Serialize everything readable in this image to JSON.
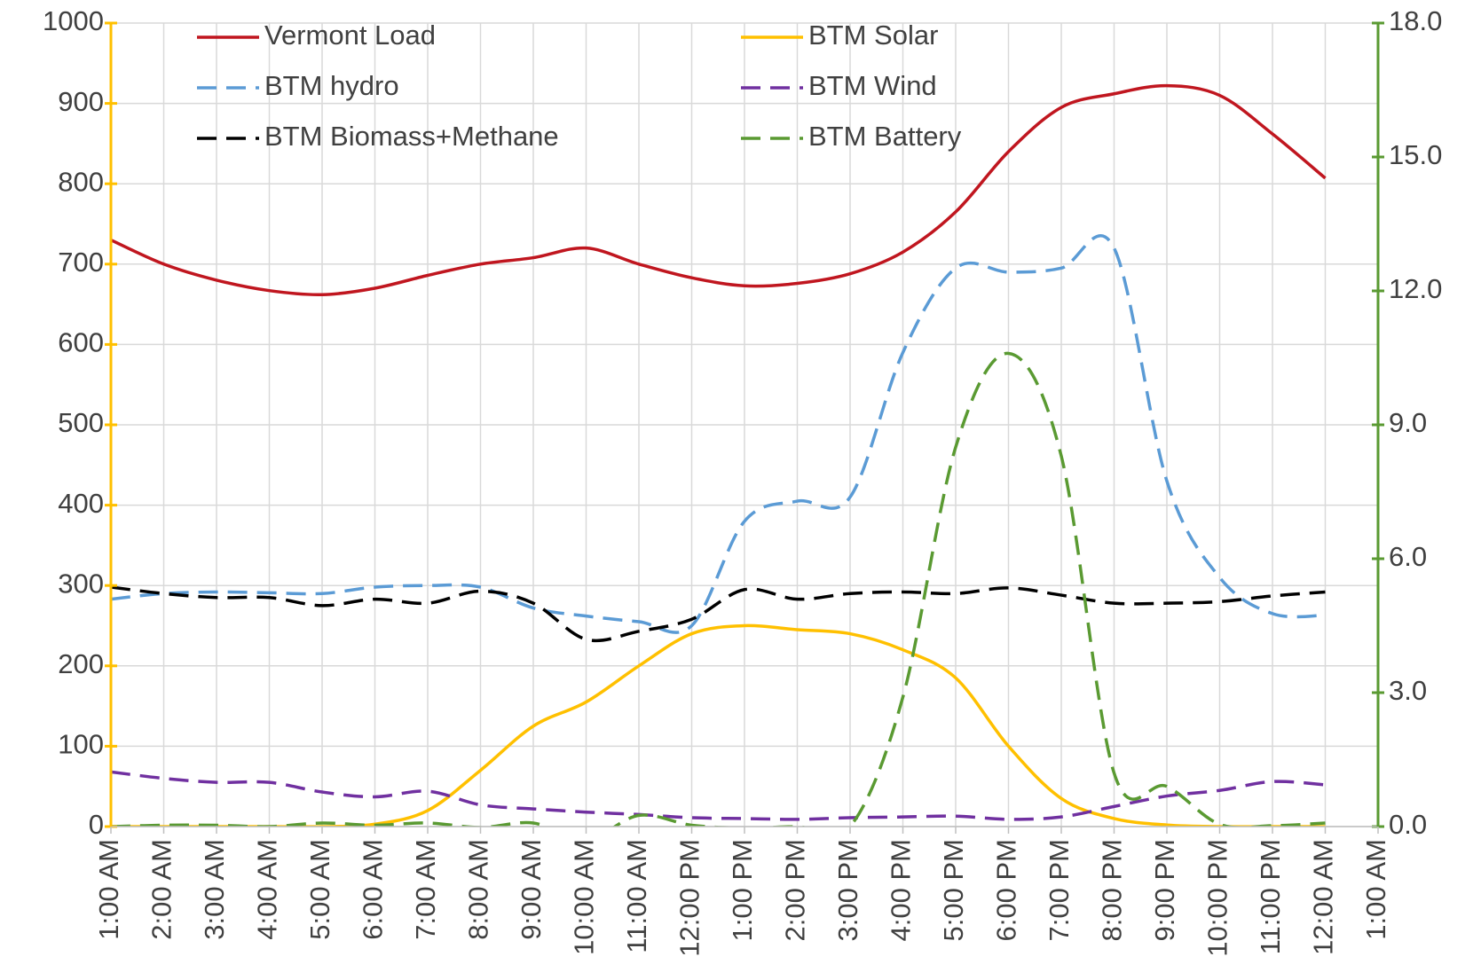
{
  "chart_data": {
    "type": "line",
    "categories": [
      "1:00 AM",
      "2:00 AM",
      "3:00 AM",
      "4:00 AM",
      "5:00 AM",
      "6:00 AM",
      "7:00 AM",
      "8:00 AM",
      "9:00 AM",
      "10:00 AM",
      "11:00 AM",
      "12:00 PM",
      "1:00 PM",
      "2:00 PM",
      "3:00 PM",
      "4:00 PM",
      "5:00 PM",
      "6:00 PM",
      "7:00 PM",
      "8:00 PM",
      "9:00 PM",
      "10:00 PM",
      "11:00 PM",
      "12:00 AM",
      "1:00 AM"
    ],
    "series": [
      {
        "name": "Vermont Load",
        "color": "#c0161f",
        "dashed": false,
        "values": [
          730,
          700,
          680,
          667,
          662,
          670,
          686,
          700,
          708,
          720,
          700,
          683,
          673,
          676,
          688,
          715,
          765,
          840,
          895,
          912,
          922,
          910,
          862,
          807,
          null
        ]
      },
      {
        "name": "BTM Solar",
        "color": "#ffc000",
        "dashed": false,
        "values": [
          0,
          0,
          0,
          0,
          0,
          3,
          20,
          70,
          125,
          155,
          200,
          240,
          250,
          245,
          240,
          220,
          185,
          100,
          35,
          10,
          2,
          0,
          0,
          0,
          null
        ]
      },
      {
        "name": "BTM hydro",
        "color": "#5b9bd5",
        "dashed": true,
        "values": [
          283,
          290,
          292,
          291,
          290,
          298,
          300,
          298,
          272,
          262,
          255,
          250,
          380,
          405,
          410,
          590,
          695,
          690,
          695,
          720,
          430,
          310,
          265,
          263,
          null
        ]
      },
      {
        "name": "BTM Wind",
        "color": "#7030a0",
        "dashed": true,
        "values": [
          68,
          60,
          55,
          55,
          43,
          37,
          44,
          27,
          22,
          18,
          15,
          11,
          10,
          9,
          11,
          12,
          13,
          9,
          12,
          25,
          38,
          45,
          56,
          52,
          null
        ]
      },
      {
        "name": "BTM Biomass+Methane",
        "color": "#000000",
        "dashed": true,
        "values": [
          298,
          290,
          285,
          285,
          275,
          283,
          278,
          293,
          278,
          233,
          243,
          258,
          295,
          283,
          290,
          292,
          290,
          297,
          288,
          278,
          278,
          280,
          287,
          292,
          null
        ]
      },
      {
        "name": "BTM Battery",
        "color": "#5a9a32",
        "dashed": true,
        "axis": "y2",
        "values": [
          0,
          0.03,
          0.03,
          0,
          0.08,
          0.03,
          0.08,
          -0.02,
          0.08,
          -0.3,
          0.25,
          0.03,
          -0.03,
          0,
          0,
          2.9,
          8.5,
          10.6,
          8.3,
          1.2,
          0.9,
          0.05,
          0.02,
          0.08,
          null
        ]
      }
    ],
    "ylim": [
      0,
      1000
    ],
    "yticks": [
      0,
      100,
      200,
      300,
      400,
      500,
      600,
      700,
      800,
      900,
      1000
    ],
    "y_axis_color": "#ffc000",
    "y2lim": [
      0,
      18
    ],
    "y2ticks": [
      {
        "value": 0,
        "label": "0.0"
      },
      {
        "value": 3,
        "label": "3.0"
      },
      {
        "value": 6,
        "label": "6.0"
      },
      {
        "value": 9,
        "label": "9.0"
      },
      {
        "value": 12,
        "label": "12.0"
      },
      {
        "value": 15,
        "label": "15.0"
      },
      {
        "value": 18,
        "label": "18.0"
      }
    ],
    "y2_axis_color": "#5a9a32",
    "grid": true
  }
}
